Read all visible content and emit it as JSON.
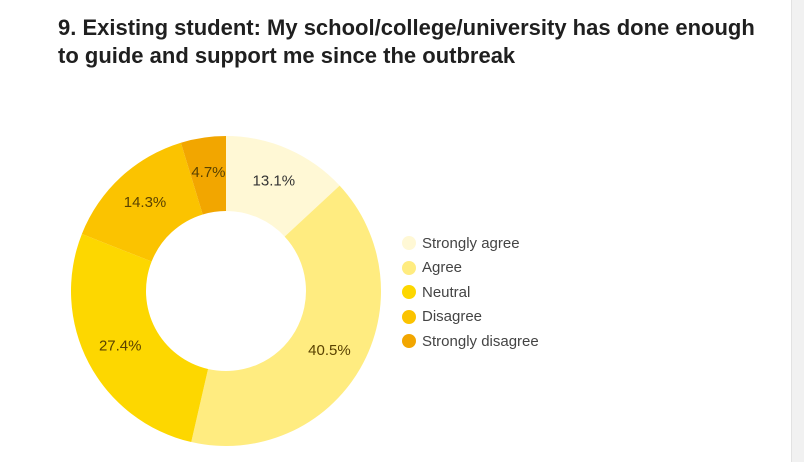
{
  "title": "9. Existing student: My school/college/university has done enough to guide and support me since the outbreak",
  "chart_data": {
    "type": "pie",
    "variant": "donut",
    "title": "9. Existing student: My school/college/university has done enough to guide and support me since the outbreak",
    "legend_position": "right",
    "categories": [
      "Strongly agree",
      "Agree",
      "Neutral",
      "Disagree",
      "Strongly disagree"
    ],
    "values": [
      13.1,
      40.5,
      27.4,
      14.3,
      4.7
    ],
    "labels": [
      "13.1%",
      "40.5%",
      "27.4%",
      "14.3%",
      "4.7%"
    ],
    "colors": [
      "#fff8d5",
      "#ffec80",
      "#fdd700",
      "#fbc300",
      "#f2a600"
    ]
  },
  "legend": [
    {
      "label": "Strongly agree",
      "color": "#fff8d5"
    },
    {
      "label": "Agree",
      "color": "#ffec80"
    },
    {
      "label": "Neutral",
      "color": "#fdd700"
    },
    {
      "label": "Disagree",
      "color": "#fbc300"
    },
    {
      "label": "Strongly disagree",
      "color": "#f2a600"
    }
  ]
}
